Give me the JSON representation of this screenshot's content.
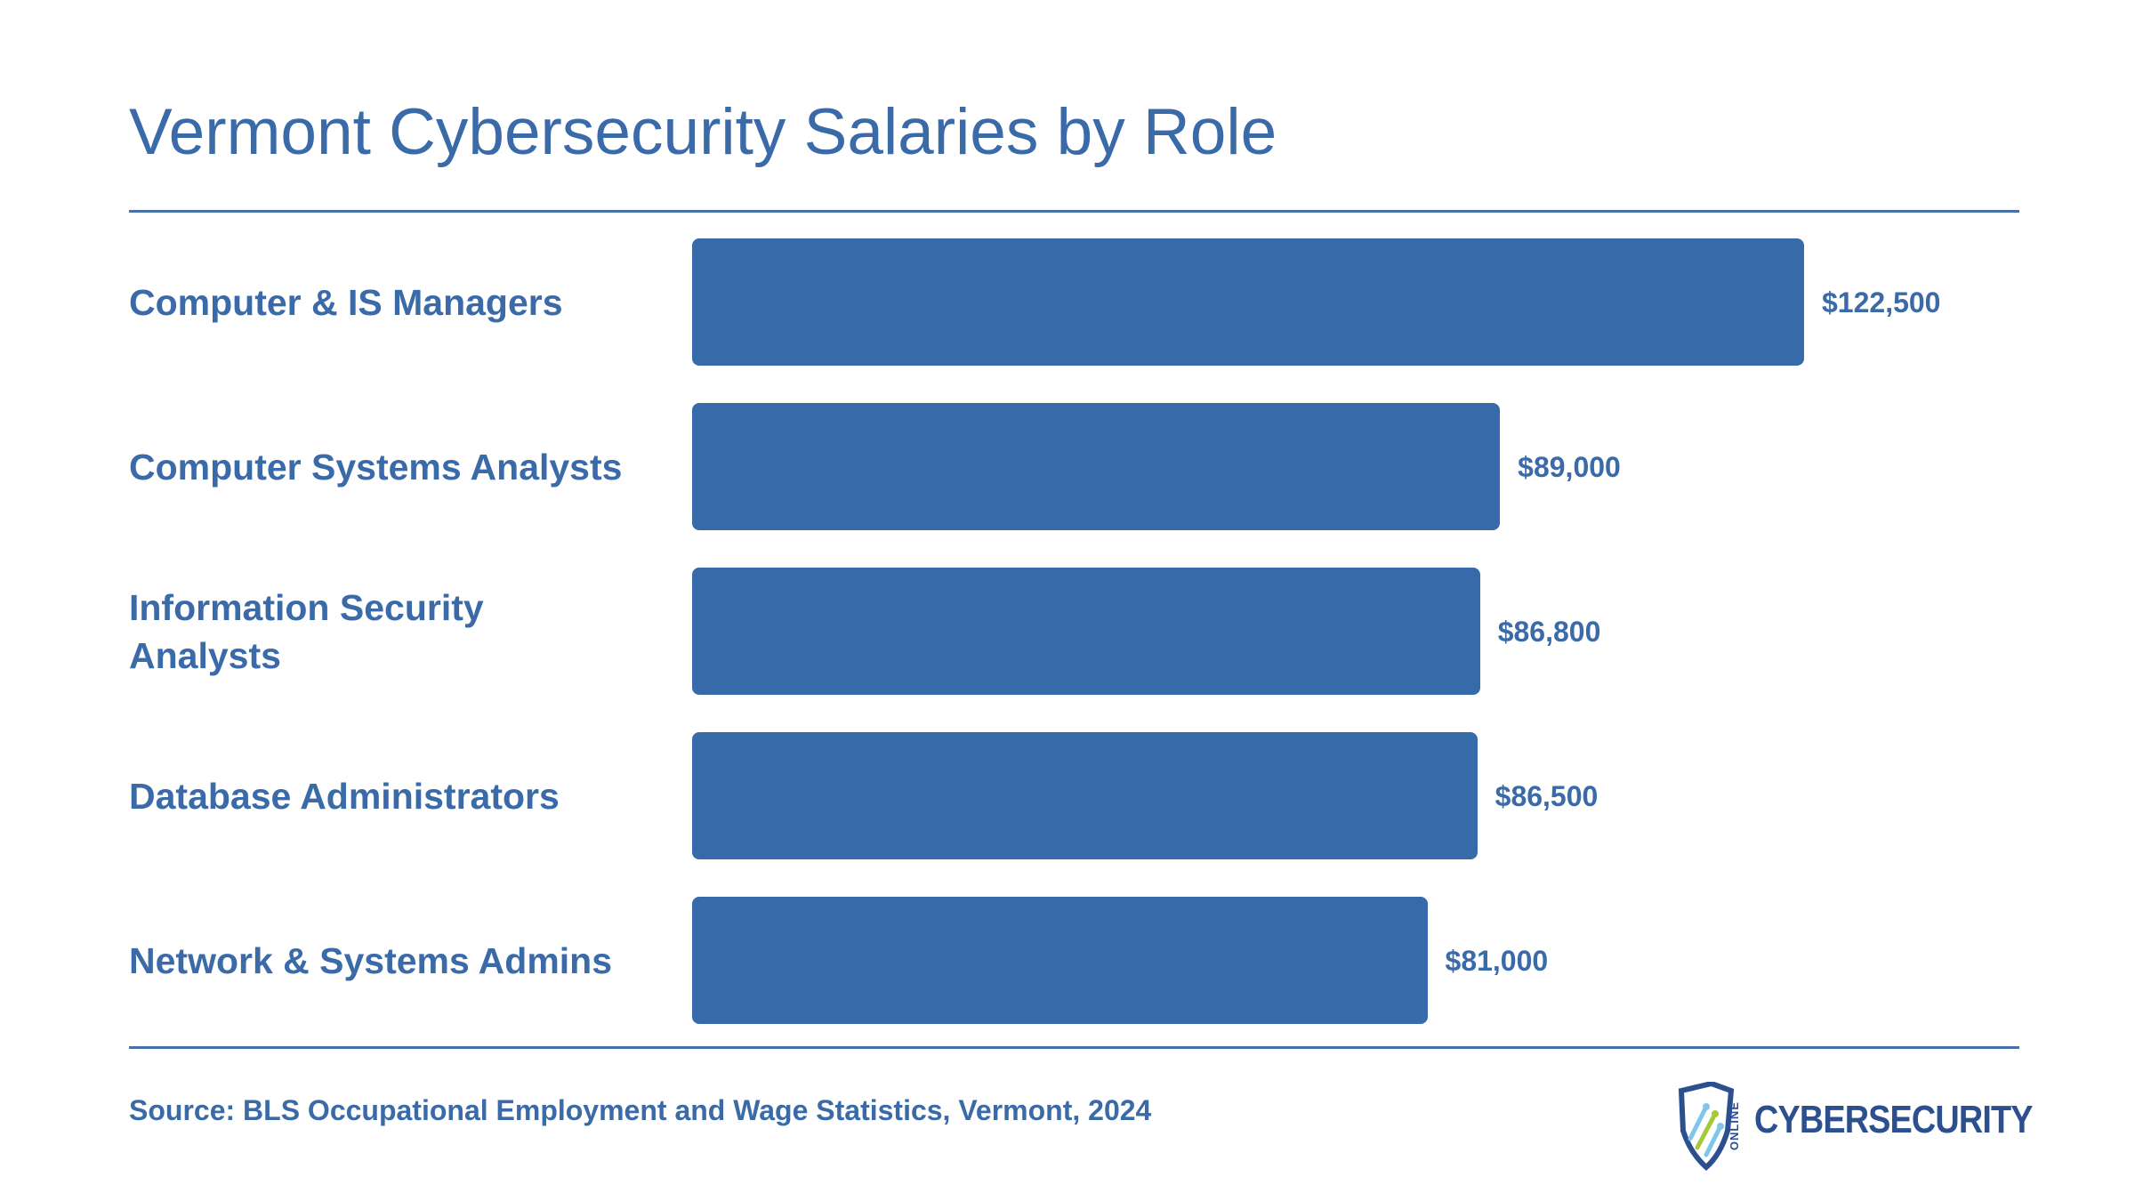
{
  "title": "Vermont Cybersecurity Salaries by Role",
  "source": "Source: BLS Occupational Employment and Wage Statistics, Vermont, 2024",
  "logo": {
    "small_text": "ONLINE",
    "main_text": "CYBERSECURITY",
    "icon": "shield-icon"
  },
  "colors": {
    "bar": "#376aa8",
    "text": "#3a6aa8",
    "rule": "#4472a8"
  },
  "chart_data": {
    "type": "bar",
    "orientation": "horizontal",
    "title": "Vermont Cybersecurity Salaries by Role",
    "xlabel": "",
    "ylabel": "",
    "categories": [
      "Computer & IS Managers",
      "Computer Systems Analysts",
      "Information Security Analysts",
      "Database Administrators",
      "Network & Systems Admins"
    ],
    "values": [
      122500,
      89000,
      86800,
      86500,
      81000
    ],
    "value_labels": [
      "$122,500",
      "$89,000",
      "$86,800",
      "$86,500",
      "$81,000"
    ],
    "grid": false,
    "legend": "none"
  }
}
